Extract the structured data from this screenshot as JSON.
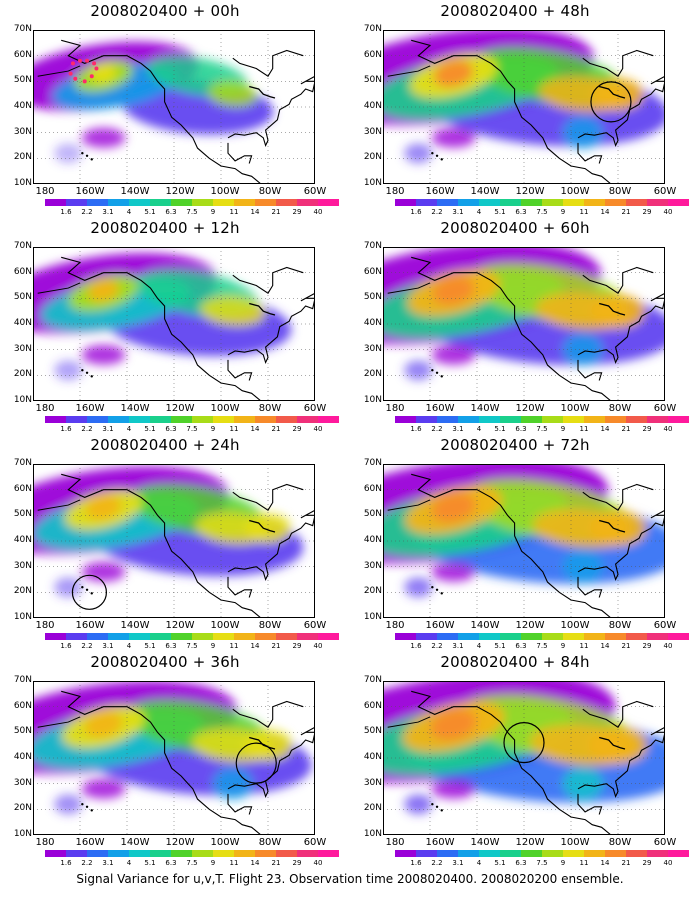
{
  "footer": "Signal Variance for u,v,T. Flight 23. Observation time 2008020400. 2008020200 ensemble.",
  "lat_labels": [
    "70N",
    "60N",
    "50N",
    "40N",
    "30N",
    "20N",
    "10N"
  ],
  "lon_labels": [
    "180",
    "160W",
    "140W",
    "120W",
    "100W",
    "80W",
    "60W"
  ],
  "colorbar_labels": [
    "1.6",
    "2.2",
    "3.1",
    "4",
    "5.1",
    "6.3",
    "7.5",
    "9",
    "11",
    "14",
    "21",
    "29",
    "40"
  ],
  "colorbar_colors": [
    "#9a00d8",
    "#5a3cf0",
    "#2c6cf4",
    "#12a0e8",
    "#10c8c8",
    "#1ad08c",
    "#50d22a",
    "#a8dc18",
    "#e6de14",
    "#f2b418",
    "#f78a2a",
    "#f25a4a",
    "#f0307a",
    "#ff1a9c"
  ],
  "panels": [
    {
      "title": "2008020400 + 00h",
      "col": 0,
      "row": 0,
      "level": 0.3,
      "circle": null,
      "dotted": true
    },
    {
      "title": "2008020400 + 12h",
      "col": 0,
      "row": 1,
      "level": 0.45,
      "circle": null,
      "dotted": false
    },
    {
      "title": "2008020400 + 24h",
      "col": 0,
      "row": 2,
      "level": 0.55,
      "circle": "hawaii",
      "dotted": false
    },
    {
      "title": "2008020400 + 36h",
      "col": 0,
      "row": 3,
      "level": 0.62,
      "circle": "gulf",
      "dotted": false
    },
    {
      "title": "2008020400 + 48h",
      "col": 1,
      "row": 0,
      "level": 0.68,
      "circle": "lakes",
      "dotted": false
    },
    {
      "title": "2008020400 + 60h",
      "col": 1,
      "row": 1,
      "level": 0.74,
      "circle": null,
      "dotted": false
    },
    {
      "title": "2008020400 + 72h",
      "col": 1,
      "row": 2,
      "level": 0.8,
      "circle": null,
      "dotted": false
    },
    {
      "title": "2008020400 + 84h",
      "col": 1,
      "row": 3,
      "level": 0.86,
      "circle": "rockies",
      "dotted": false
    }
  ]
}
